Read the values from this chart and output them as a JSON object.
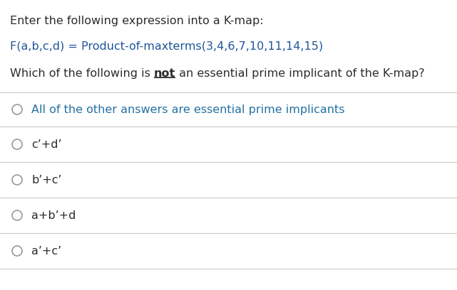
{
  "line1": "Enter the following expression into a K-map:",
  "line2": "F(a,b,c,d) = Product-of-maxterms(3,4,6,7,10,11,14,15)",
  "line3_plain": "Which of the following is ",
  "line3_underline": "not",
  "line3_suffix": " an essential prime implicant of the K-map?",
  "options": [
    "All of the other answers are essential prime implicants",
    "c’+d’",
    "b’+c’",
    "a+b’+d",
    "a’+c’"
  ],
  "text_color_main": "#2c2c2c",
  "text_color_blue": "#1e5799",
  "text_color_option1": "#2471a3",
  "divider_color": "#c8c8c8",
  "background_color": "#ffffff",
  "circle_color": "#999999",
  "font_size_main": 11.5,
  "font_size_option": 11.5,
  "fig_width": 6.41,
  "fig_height": 4.08,
  "dpi": 100
}
